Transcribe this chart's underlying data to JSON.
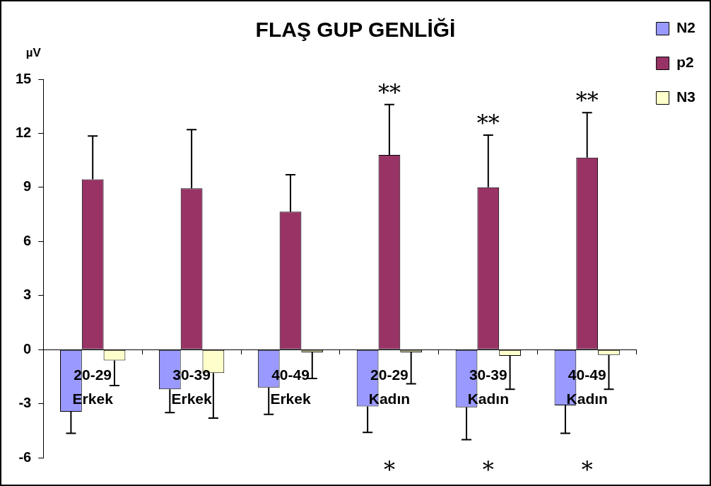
{
  "chart_data": {
    "type": "bar",
    "title": "FLAŞ GUP GENLİĞİ",
    "ylabel": "µV",
    "categories": [
      "20-29\nErkek",
      "30-39\nErkek",
      "40-49\nErkek",
      "20-29\nKadın",
      "30-39\nKadın",
      "40-49\nKadın"
    ],
    "series": [
      {
        "name": "N2",
        "color": "#9999ff",
        "values": [
          -3.45,
          -2.2,
          -2.1,
          -3.15,
          -3.2,
          -3.1
        ],
        "errors": [
          [
            -4.65,
            -3.45
          ],
          [
            -3.5,
            -2.2
          ],
          [
            -3.6,
            -2.1
          ],
          [
            -4.6,
            -3.15
          ],
          [
            -5.0,
            -3.2
          ],
          [
            -4.65,
            -3.1
          ]
        ]
      },
      {
        "name": "p2",
        "color": "#993366",
        "values": [
          9.45,
          8.95,
          7.65,
          10.8,
          9.0,
          10.65
        ],
        "errors": [
          [
            9.45,
            11.85
          ],
          [
            8.95,
            12.2
          ],
          [
            7.65,
            9.7
          ],
          [
            10.8,
            13.6
          ],
          [
            9.0,
            11.9
          ],
          [
            10.65,
            13.15
          ]
        ]
      },
      {
        "name": "N3",
        "color": "#ffffcc",
        "values": [
          -0.6,
          -1.3,
          -0.15,
          -0.15,
          -0.35,
          -0.3
        ],
        "errors": [
          [
            -2.0,
            -0.6
          ],
          [
            -3.8,
            -1.3
          ],
          [
            -1.6,
            -0.15
          ],
          [
            -1.9,
            -0.15
          ],
          [
            -2.2,
            -0.35
          ],
          [
            -2.2,
            -0.3
          ]
        ]
      }
    ],
    "ylim": [
      -6,
      15
    ],
    "yticks": [
      -6,
      -3,
      0,
      3,
      6,
      9,
      12,
      15
    ],
    "grid": false,
    "legend": "top right",
    "annotations": [
      {
        "text": "**",
        "x": "20-29\nKadın",
        "y": 13.6
      },
      {
        "text": "**",
        "x": "30-39\nKadın",
        "y": 11.9
      },
      {
        "text": "**",
        "x": "40-49\nKadın",
        "y": 13.15
      },
      "*",
      "*",
      "*"
    ]
  }
}
